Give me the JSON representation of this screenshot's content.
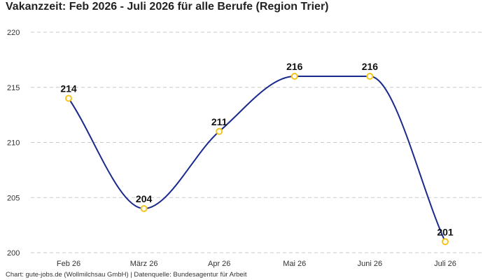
{
  "chart_data": {
    "type": "line",
    "title": "Vakanzzeit: Feb 2026 - Juli 2026 für alle Berufe (Region Trier)",
    "categories": [
      "Feb 26",
      "März 26",
      "Apr 26",
      "Mai 26",
      "Juni 26",
      "Juli 26"
    ],
    "series": [
      {
        "values": [
          214,
          204,
          211,
          216,
          216,
          201
        ]
      }
    ],
    "ylim": [
      200,
      220
    ],
    "yticks": [
      200,
      205,
      210,
      215,
      220
    ],
    "grid": true,
    "line_color": "#1a2a8c",
    "marker_color": "#f5c518"
  },
  "footer": "Chart: gute-jobs.de (Wollmilchsau GmbH) | Datenquelle: Bundesagentur für Arbeit"
}
